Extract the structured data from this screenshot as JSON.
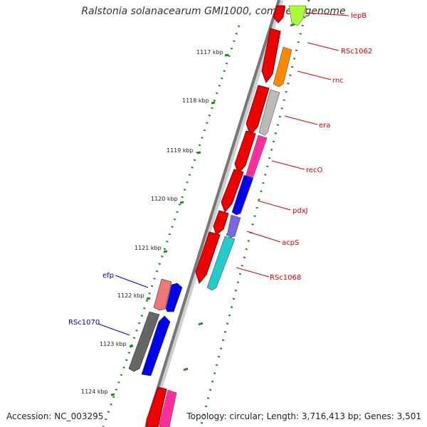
{
  "title": "Ralstonia solanacearum GMI1000, complete genome",
  "accession": "Accession: NC_003295",
  "topology": "Topology: circular; Length: 3,716,413 bp; Genes: 3,501",
  "scale": {
    "unit_label_suffix": "kbp",
    "major_ticks": [
      {
        "label": "1117 kbp"
      },
      {
        "label": "1118 kbp"
      },
      {
        "label": "1119 kbp"
      },
      {
        "label": "1120 kbp"
      },
      {
        "label": "1121 kbp"
      },
      {
        "label": "1122 kbp"
      },
      {
        "label": "1123 kbp"
      },
      {
        "label": "1124 kbp"
      }
    ]
  },
  "colors": {
    "backbone": "#7a7a7a",
    "tick": "#1f8a1f",
    "forward_label": "#cc0000",
    "reverse_label": "#0000bb"
  },
  "genes": [
    {
      "name": "lepB",
      "strand": "forward",
      "color": "#aaff33"
    },
    {
      "name": "RSc1062",
      "strand": "forward",
      "color": "#ff8800"
    },
    {
      "name": "rnc",
      "strand": "forward",
      "color": "#ff8800"
    },
    {
      "name": "era",
      "strand": "forward",
      "color": "#bbbbbb"
    },
    {
      "name": "recO",
      "strand": "forward",
      "color": "#ff2d9e"
    },
    {
      "name": "pdxJ",
      "strand": "forward",
      "color": "#0000ee"
    },
    {
      "name": "acpS",
      "strand": "forward",
      "color": "#7766dd"
    },
    {
      "name": "RSc1068",
      "strand": "forward",
      "color": "#22cccc"
    },
    {
      "name": "efp",
      "strand": "reverse",
      "color": "#ee7777"
    },
    {
      "name": "RSc1070",
      "strand": "reverse",
      "color": "#666666"
    }
  ]
}
